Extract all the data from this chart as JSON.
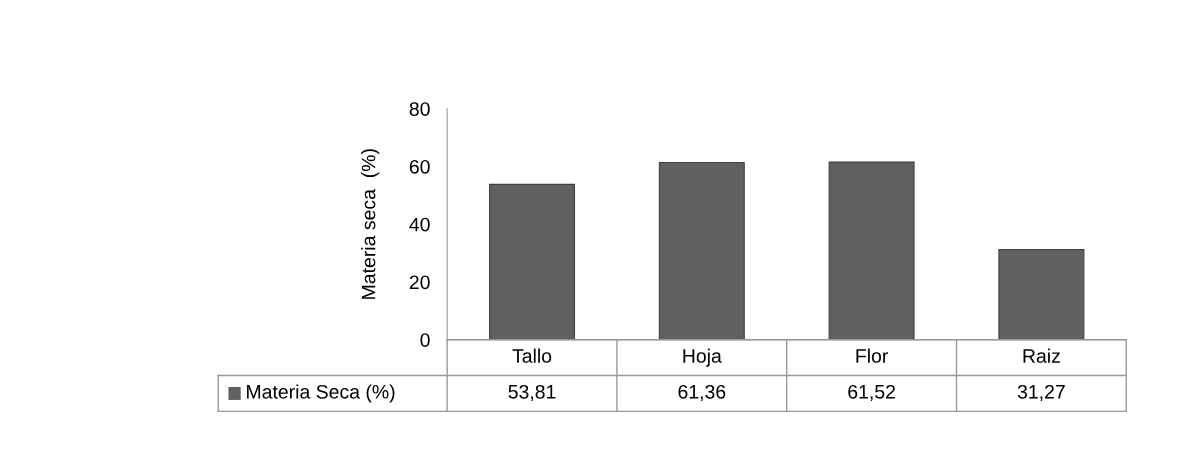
{
  "chart_data": {
    "type": "bar",
    "ylabel": "Materia seca  (%)",
    "categories": [
      "Tallo",
      "Hoja",
      "Flor",
      "Raiz"
    ],
    "series": [
      {
        "name": "Materia Seca (%)",
        "color": "#606060",
        "values": [
          53.81,
          61.36,
          61.52,
          31.27
        ],
        "value_labels": [
          "53,81",
          "61,36",
          "61,52",
          "31,27"
        ]
      }
    ],
    "ylim": [
      0,
      80
    ],
    "yticks": [
      0,
      20,
      40,
      60,
      80
    ],
    "grid": false,
    "legend": "bottom"
  }
}
